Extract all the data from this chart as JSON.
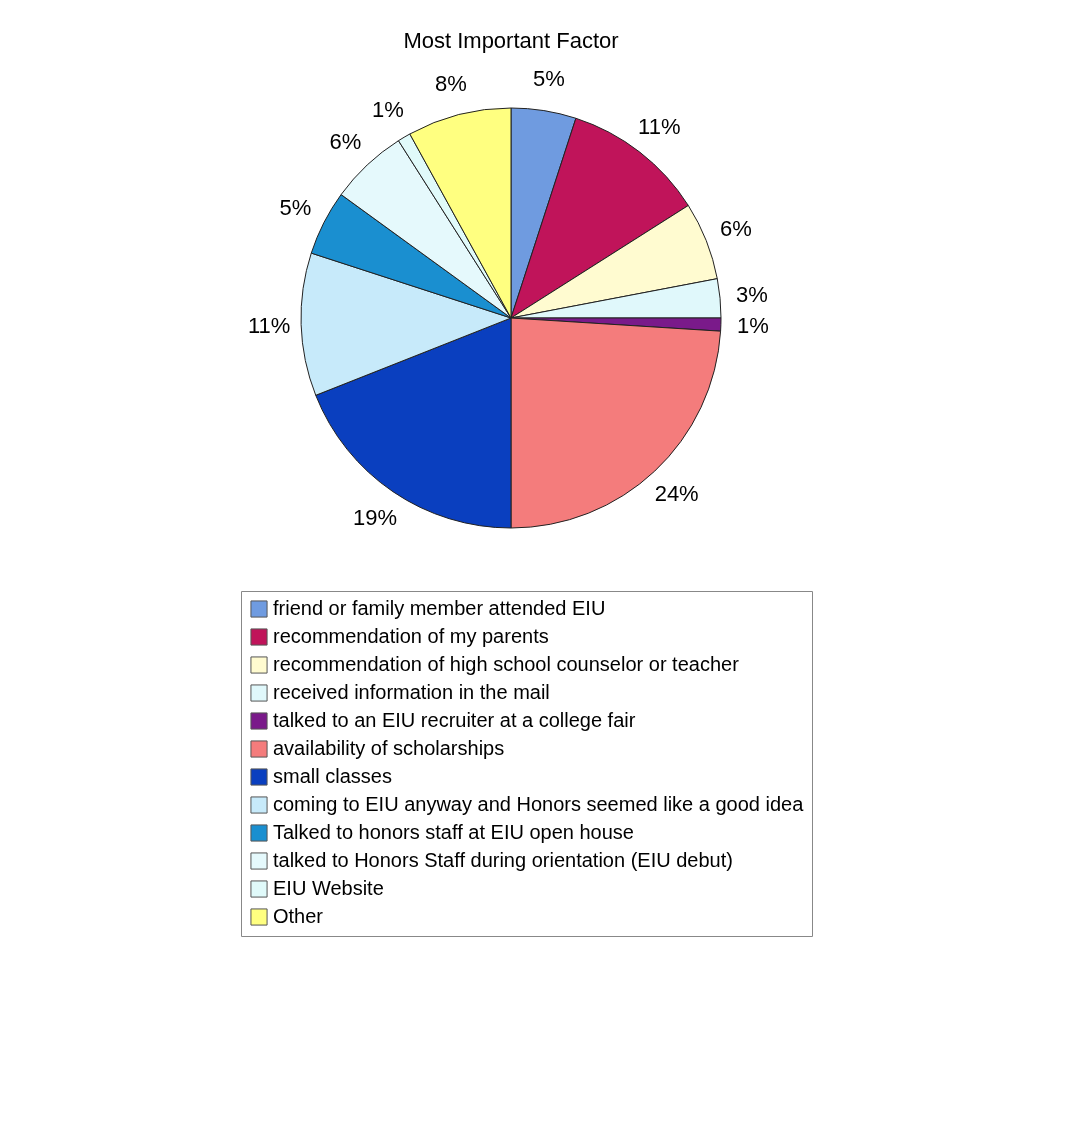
{
  "chart_data": {
    "type": "pie",
    "title": "Most Important Factor",
    "categories": [
      "friend or family member attended EIU",
      "recommendation of my parents",
      "recommendation of high school counselor or teacher",
      "received information in the mail",
      "talked to an EIU recruiter at a college fair",
      "availability of scholarships",
      "small classes",
      "coming to EIU anyway and Honors seemed like a good idea",
      "Talked to honors staff at EIU open house",
      "talked to Honors Staff during orientation (EIU debut)",
      "EIU Website",
      "Other"
    ],
    "values": [
      5,
      11,
      6,
      3,
      1,
      24,
      19,
      11,
      5,
      6,
      1,
      8
    ],
    "value_labels": [
      "5%",
      "11%",
      "6%",
      "3%",
      "1%",
      "24%",
      "19%",
      "11%",
      "5%",
      "6%",
      "1%",
      "8%"
    ],
    "colors": [
      "#6f9be0",
      "#c0145a",
      "#fffbd0",
      "#e0f8fb",
      "#7a1a8a",
      "#f47c7c",
      "#0a3fbf",
      "#c7eafa",
      "#1a8fd0",
      "#e5f9fc",
      "#e0fafa",
      "#ffff80"
    ],
    "legend": "bottom"
  }
}
